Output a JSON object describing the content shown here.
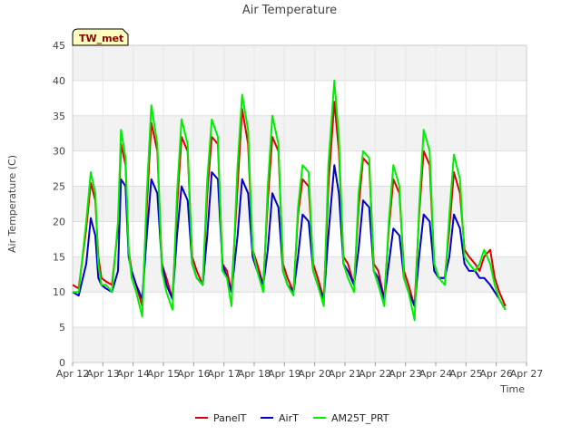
{
  "chart_data": {
    "type": "line",
    "title": "Air Temperature",
    "xlabel": "Time",
    "ylabel": "Air Temperature (C)",
    "station_label": "TW_met",
    "ylim": [
      0,
      45
    ],
    "yticks": [
      0,
      5,
      10,
      15,
      20,
      25,
      30,
      35,
      40,
      45
    ],
    "xlim": [
      12,
      27
    ],
    "xticks": [
      {
        "v": 12,
        "label": "Apr 12"
      },
      {
        "v": 13,
        "label": "Apr 13"
      },
      {
        "v": 14,
        "label": "Apr 14"
      },
      {
        "v": 15,
        "label": "Apr 15"
      },
      {
        "v": 16,
        "label": "Apr 16"
      },
      {
        "v": 17,
        "label": "Apr 17"
      },
      {
        "v": 18,
        "label": "Apr 18"
      },
      {
        "v": 19,
        "label": "Apr 19"
      },
      {
        "v": 20,
        "label": "Apr 20"
      },
      {
        "v": 21,
        "label": "Apr 21"
      },
      {
        "v": 22,
        "label": "Apr 22"
      },
      {
        "v": 23,
        "label": "Apr 23"
      },
      {
        "v": 24,
        "label": "Apr 24"
      },
      {
        "v": 25,
        "label": "Apr 25"
      },
      {
        "v": 26,
        "label": "Apr 26"
      },
      {
        "v": 27,
        "label": "Apr 27"
      }
    ],
    "grid": true,
    "legend_position": "bottom",
    "series": [
      {
        "name": "PanelT",
        "color": "#dd0000",
        "x": [
          12.0,
          12.2,
          12.45,
          12.6,
          12.75,
          12.85,
          12.95,
          13.1,
          13.3,
          13.5,
          13.6,
          13.75,
          13.85,
          13.95,
          14.1,
          14.3,
          14.45,
          14.6,
          14.8,
          14.95,
          15.1,
          15.3,
          15.45,
          15.6,
          15.8,
          15.95,
          16.1,
          16.3,
          16.45,
          16.6,
          16.8,
          16.95,
          17.1,
          17.25,
          17.45,
          17.6,
          17.8,
          17.95,
          18.1,
          18.3,
          18.45,
          18.6,
          18.8,
          18.95,
          19.1,
          19.3,
          19.45,
          19.6,
          19.8,
          19.95,
          20.1,
          20.3,
          20.45,
          20.65,
          20.8,
          20.95,
          21.1,
          21.3,
          21.45,
          21.6,
          21.8,
          21.95,
          22.1,
          22.3,
          22.45,
          22.6,
          22.8,
          22.95,
          23.1,
          23.3,
          23.45,
          23.6,
          23.8,
          23.95,
          24.1,
          24.3,
          24.45,
          24.6,
          24.8,
          24.95,
          25.1,
          25.3,
          25.45,
          25.6,
          25.8,
          25.95,
          26.1,
          26.3
        ],
        "y": [
          11,
          10.5,
          19,
          25.5,
          23,
          15,
          12,
          11.5,
          11,
          19,
          31,
          28,
          16,
          13,
          11,
          8,
          22,
          34,
          30,
          14,
          12,
          9,
          22,
          32,
          30,
          15,
          13,
          11,
          24,
          32,
          31,
          14,
          13,
          10,
          25,
          36,
          31,
          16,
          14,
          11,
          23,
          32,
          30,
          14,
          12,
          10,
          21,
          26,
          25,
          14,
          12,
          9,
          25,
          37,
          30,
          15,
          14,
          11,
          22,
          29,
          28,
          14,
          13,
          9,
          19,
          26,
          24,
          13,
          11,
          8,
          21,
          30,
          28,
          14,
          12,
          12,
          19,
          27,
          24,
          16,
          15,
          14,
          13,
          15,
          16,
          12,
          10,
          8
        ]
      },
      {
        "name": "AirT",
        "color": "#0000cc",
        "x": [
          12.0,
          12.2,
          12.45,
          12.6,
          12.75,
          12.85,
          12.95,
          13.1,
          13.3,
          13.5,
          13.6,
          13.75,
          13.85,
          13.95,
          14.1,
          14.3,
          14.45,
          14.6,
          14.8,
          14.95,
          15.1,
          15.3,
          15.45,
          15.6,
          15.8,
          15.95,
          16.1,
          16.3,
          16.45,
          16.6,
          16.8,
          16.95,
          17.1,
          17.25,
          17.45,
          17.6,
          17.8,
          17.95,
          18.1,
          18.3,
          18.45,
          18.6,
          18.8,
          18.95,
          19.1,
          19.3,
          19.45,
          19.6,
          19.8,
          19.95,
          20.1,
          20.3,
          20.45,
          20.65,
          20.8,
          20.95,
          21.1,
          21.3,
          21.45,
          21.6,
          21.8,
          21.95,
          22.1,
          22.3,
          22.45,
          22.6,
          22.8,
          22.95,
          23.1,
          23.3,
          23.45,
          23.6,
          23.8,
          23.95,
          24.1,
          24.3,
          24.45,
          24.6,
          24.8,
          24.95,
          25.1,
          25.3,
          25.45,
          25.6,
          25.8,
          25.95,
          26.1,
          26.3
        ],
        "y": [
          10,
          9.5,
          14,
          20.5,
          18,
          12,
          11,
          10.5,
          10,
          13,
          26,
          25,
          15,
          13,
          11,
          9,
          18,
          26,
          24,
          14,
          11,
          9,
          18,
          25,
          23,
          14,
          12,
          11,
          18,
          27,
          26,
          14,
          12,
          10,
          18,
          26,
          24,
          15,
          13,
          11,
          16,
          24,
          22,
          13,
          11,
          10,
          15,
          21,
          20,
          13,
          11,
          9,
          18,
          28,
          24,
          14,
          13,
          11,
          16,
          23,
          22,
          13,
          12,
          9,
          14,
          19,
          18,
          12,
          10,
          8,
          15,
          21,
          20,
          13,
          12,
          12,
          15,
          21,
          19,
          14,
          13,
          13,
          12,
          12,
          11,
          10,
          9,
          7.5
        ]
      },
      {
        "name": "AM25T_PRT",
        "color": "#00ee00",
        "x": [
          12.0,
          12.2,
          12.45,
          12.6,
          12.75,
          12.85,
          12.95,
          13.1,
          13.3,
          13.5,
          13.6,
          13.75,
          13.85,
          13.95,
          14.1,
          14.3,
          14.45,
          14.6,
          14.8,
          14.95,
          15.1,
          15.3,
          15.45,
          15.6,
          15.8,
          15.95,
          16.1,
          16.3,
          16.45,
          16.6,
          16.8,
          16.95,
          17.1,
          17.25,
          17.45,
          17.6,
          17.8,
          17.95,
          18.1,
          18.3,
          18.45,
          18.6,
          18.8,
          18.95,
          19.1,
          19.3,
          19.45,
          19.6,
          19.8,
          19.95,
          20.1,
          20.3,
          20.45,
          20.65,
          20.8,
          20.95,
          21.1,
          21.3,
          21.45,
          21.6,
          21.8,
          21.95,
          22.1,
          22.3,
          22.45,
          22.6,
          22.8,
          22.95,
          23.1,
          23.3,
          23.45,
          23.6,
          23.8,
          23.95,
          24.1,
          24.3,
          24.45,
          24.6,
          24.8,
          24.95,
          25.1,
          25.3,
          25.45,
          25.6,
          25.8,
          25.95,
          26.1,
          26.3
        ],
        "y": [
          10,
          10,
          20,
          27,
          24,
          14,
          11,
          11,
          10,
          20,
          33,
          29,
          16,
          12,
          10,
          6.5,
          24,
          36.5,
          31,
          13,
          10,
          7.5,
          24,
          34.5,
          31,
          14,
          12,
          11,
          26,
          34.5,
          32,
          13,
          12,
          8,
          28,
          38,
          33,
          16,
          13,
          10,
          25,
          35,
          31,
          13,
          11,
          9.5,
          22,
          28,
          27,
          13,
          11,
          8,
          28,
          40,
          32,
          14,
          12,
          10,
          24,
          30,
          29,
          13,
          11,
          8,
          20,
          28,
          25,
          12,
          10,
          6,
          22,
          33,
          30,
          14,
          12,
          11,
          21,
          29.5,
          26,
          15,
          14,
          13,
          14,
          16,
          14,
          11,
          9,
          7.5
        ]
      }
    ]
  }
}
